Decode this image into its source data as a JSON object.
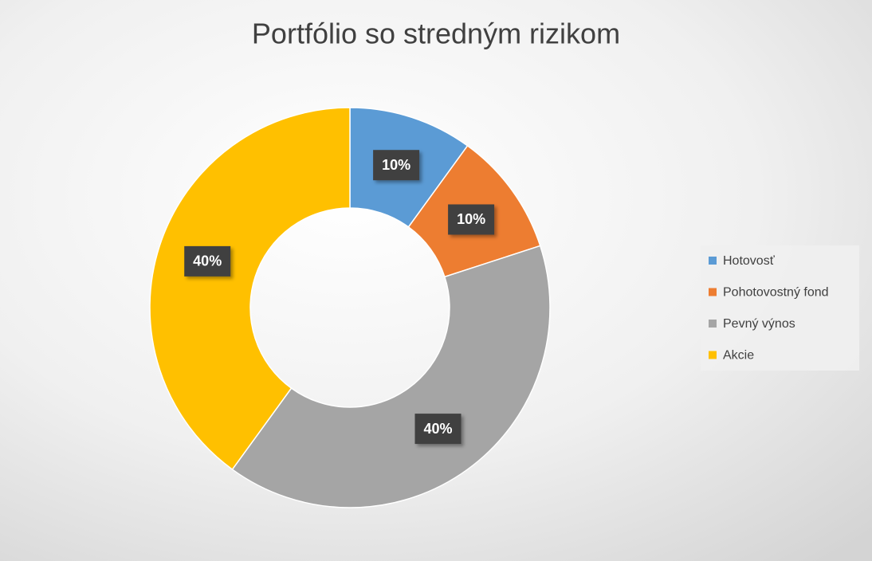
{
  "chart_data": {
    "type": "donut",
    "title": "Portfólio so stredným rizikom",
    "categories": [
      "Hotovosť",
      "Pohotovostný fond",
      "Pevný výnos",
      "Akcie"
    ],
    "values": [
      10,
      10,
      40,
      40
    ],
    "value_labels": [
      "10%",
      "10%",
      "40%",
      "40%"
    ],
    "colors": [
      "#5b9bd5",
      "#ed7d31",
      "#a5a5a5",
      "#ffc000"
    ],
    "legend": "right"
  }
}
